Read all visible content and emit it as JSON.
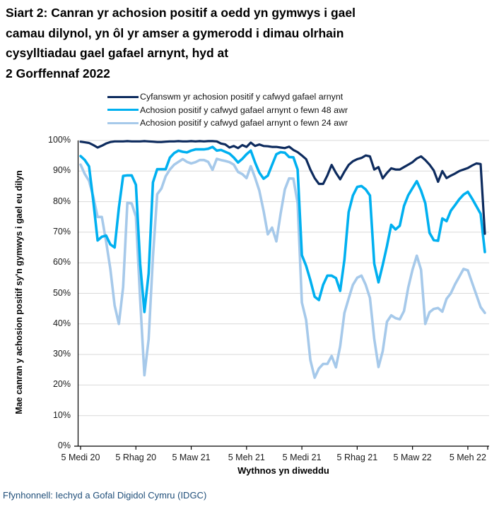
{
  "title": {
    "text": "Siart 2: Canran yr achosion positif a oedd yn gymwys i gael\ncamau dilynol, yn ôl yr amser a gymerodd i dimau olrhain\ncysylltiadau gael gafael arnynt, hyd at\n2 Gorffennaf 2022"
  },
  "legend": [
    {
      "label": "Cyfanswm yr achosion positif y cafwyd gafael arnynt",
      "color": "#0d2b5e"
    },
    {
      "label": "Achosion positif y cafwyd gafael arnynt o fewn 48 awr",
      "color": "#00b0f0"
    },
    {
      "label": "Achosion positif y cafwyd gafael arnynt o fewn 24 awr",
      "color": "#a6c9ea"
    }
  ],
  "colors": {
    "gridline": "#d9d9d9",
    "axis": "#000000",
    "footer_text": "#1f4e79"
  },
  "chart_data": {
    "type": "line",
    "title": "Siart 2: Canran yr achosion positif a oedd yn gymwys i gael camau dilynol, yn ôl yr amser a gymerodd i dimau olrhain cysylltiadau gael gafael arnynt, hyd at 2 Gorffennaf 2022",
    "grid": "horizontal",
    "legend_position": "top",
    "weeks_total": 96,
    "x_axis": {
      "label": "Wythnos yn diweddu",
      "tick_labels": [
        "5 Medi 20",
        "5 Rhag 20",
        "5 Maw 21",
        "5 Meh 21",
        "5 Medi 21",
        "5 Rhag 21",
        "5 Maw 22",
        "5 Meh 22"
      ],
      "tick_weeks": [
        0,
        13,
        26,
        39,
        52,
        65,
        78,
        91
      ]
    },
    "y_axis": {
      "label": "Mae canran y achosion positif sy'n gymwys i gael eu dilyn",
      "min": 0,
      "max": 100,
      "tick_labels": [
        "0%",
        "10%",
        "20%",
        "30%",
        "40%",
        "50%",
        "60%",
        "70%",
        "80%",
        "90%",
        "100%"
      ]
    },
    "series": [
      {
        "name": "Cyfanswm yr achosion positif y cafwyd gafael arnynt",
        "color": "#0d2b5e",
        "values": [
          99.6,
          99.4,
          99.2,
          98.5,
          97.7,
          98.3,
          99.0,
          99.5,
          99.7,
          99.7,
          99.7,
          99.8,
          99.7,
          99.7,
          99.7,
          99.8,
          99.7,
          99.6,
          99.5,
          99.5,
          99.6,
          99.7,
          99.7,
          99.8,
          99.7,
          99.7,
          99.8,
          99.7,
          99.8,
          99.7,
          99.8,
          99.8,
          99.7,
          99.0,
          98.7,
          97.7,
          98.2,
          97.5,
          98.5,
          97.9,
          99.3,
          98.2,
          98.7,
          98.2,
          98.1,
          97.9,
          97.9,
          97.7,
          97.5,
          98.0,
          96.9,
          96.2,
          95.1,
          93.9,
          90.5,
          87.7,
          85.8,
          85.8,
          88.6,
          92.0,
          89.4,
          87.3,
          89.8,
          92.0,
          93.2,
          93.9,
          94.3,
          95.1,
          94.8,
          90.5,
          91.3,
          87.6,
          89.4,
          90.9,
          90.5,
          90.5,
          91.3,
          92.1,
          92.9,
          94.1,
          94.8,
          93.6,
          92.1,
          90.2,
          86.5,
          90.0,
          87.7,
          88.5,
          89.2,
          90.0,
          90.5,
          91.0,
          91.8,
          92.5,
          92.3,
          69.5
        ]
      },
      {
        "name": "Achosion positif y cafwyd gafael arnynt o fewn 48 awr",
        "color": "#00b0f0",
        "values": [
          94.9,
          93.6,
          91.5,
          80.0,
          67.3,
          68.5,
          68.9,
          66.0,
          65.0,
          78.0,
          88.4,
          88.6,
          88.6,
          85.5,
          59.7,
          43.9,
          56.5,
          86.3,
          90.6,
          90.6,
          90.6,
          94.4,
          95.9,
          96.7,
          96.3,
          96.1,
          96.7,
          97.1,
          97.1,
          97.1,
          97.3,
          97.9,
          96.7,
          96.9,
          96.3,
          95.7,
          94.4,
          92.8,
          94.0,
          95.5,
          96.7,
          92.8,
          89.5,
          87.5,
          88.5,
          92.0,
          95.5,
          96.2,
          96.0,
          94.6,
          94.5,
          90.5,
          62.5,
          59.0,
          54.3,
          48.9,
          47.8,
          52.8,
          55.8,
          55.8,
          55.0,
          50.8,
          61.0,
          76.6,
          82.0,
          84.8,
          85.1,
          84.0,
          82.0,
          59.7,
          53.6,
          59.3,
          65.5,
          72.4,
          70.9,
          72.1,
          78.6,
          82.1,
          84.4,
          86.7,
          83.6,
          79.5,
          69.8,
          67.4,
          67.2,
          74.5,
          73.6,
          77.0,
          78.9,
          80.8,
          82.3,
          83.2,
          81.0,
          78.5,
          76.0,
          63.5
        ]
      },
      {
        "name": "Achosion positif y cafwyd gafael arnynt o fewn 24 awr",
        "color": "#a6c9ea",
        "values": [
          92.1,
          89.0,
          86.8,
          81.5,
          75.0,
          75.0,
          67.0,
          58.0,
          46.0,
          40.0,
          52.0,
          79.6,
          79.4,
          75.1,
          48.0,
          23.2,
          35.0,
          62.0,
          82.4,
          84.3,
          88.3,
          90.5,
          92.1,
          93.0,
          93.9,
          93.0,
          92.5,
          92.9,
          93.6,
          93.6,
          93.0,
          90.4,
          94.0,
          93.6,
          93.3,
          92.9,
          92.1,
          89.7,
          89.0,
          87.7,
          91.6,
          87.8,
          83.6,
          77.0,
          69.3,
          71.5,
          67.0,
          76.0,
          84.0,
          87.6,
          87.5,
          79.5,
          47.0,
          41.3,
          28.2,
          22.4,
          25.4,
          26.9,
          26.9,
          29.5,
          25.8,
          32.7,
          43.6,
          48.3,
          52.8,
          55.1,
          55.8,
          52.8,
          48.5,
          35.1,
          25.9,
          31.1,
          40.7,
          42.8,
          41.9,
          41.5,
          44.2,
          51.9,
          57.7,
          62.3,
          57.7,
          40.0,
          43.8,
          44.9,
          45.2,
          44.0,
          48.2,
          50.0,
          53.0,
          55.5,
          58.0,
          57.5,
          53.5,
          49.5,
          45.5,
          43.6
        ]
      }
    ]
  },
  "footer": {
    "source": "Ffynhonnell: Iechyd a Gofal Digidol Cymru (IDGC)"
  }
}
